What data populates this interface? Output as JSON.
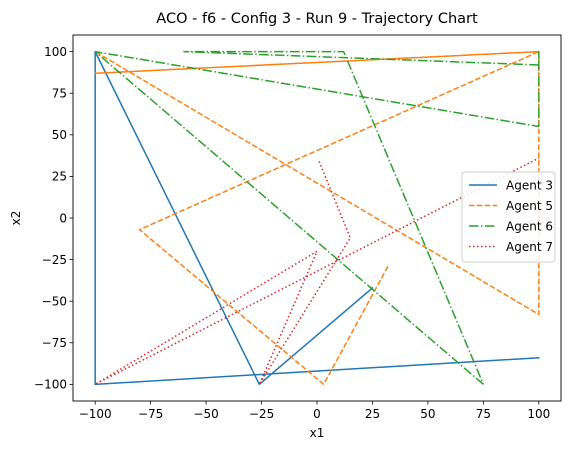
{
  "chart_data": {
    "type": "line",
    "title": "ACO - f6 - Config 3 - Run 9 - Trajectory Chart",
    "xlabel": "x1",
    "ylabel": "x2",
    "xlim": [
      -110,
      110
    ],
    "ylim": [
      -110,
      110
    ],
    "xticks": [
      -100,
      -75,
      -50,
      -25,
      0,
      25,
      50,
      75,
      100
    ],
    "yticks": [
      -100,
      -75,
      -50,
      -25,
      0,
      25,
      50,
      75,
      100
    ],
    "grid": false,
    "legend_position": "center-right",
    "series": [
      {
        "name": "Agent 3",
        "color": "#1f77b4",
        "dash": "solid",
        "points": [
          [
            25,
            -42
          ],
          [
            -26,
            -100
          ],
          [
            -100,
            100
          ],
          [
            -100,
            -100
          ],
          [
            100,
            -84
          ]
        ]
      },
      {
        "name": "Agent 5",
        "color": "#ff7f0e",
        "dash": "dashed",
        "points": [
          [
            32,
            -29
          ],
          [
            3,
            -100
          ],
          [
            -80,
            -7
          ],
          [
            100,
            100
          ],
          [
            -100,
            87
          ],
          [
            100,
            100
          ],
          [
            100,
            -58
          ],
          [
            -100,
            100
          ]
        ]
      },
      {
        "name": "Agent 6",
        "color": "#2ca02c",
        "dash": "dashdot",
        "points": [
          [
            75,
            -100
          ],
          [
            -100,
            100
          ],
          [
            100,
            55
          ],
          [
            100,
            100
          ],
          [
            100,
            92
          ],
          [
            -60,
            100
          ],
          [
            -30,
            100
          ],
          [
            12,
            100
          ],
          [
            75,
            -100
          ]
        ]
      },
      {
        "name": "Agent 7",
        "color": "#d62728",
        "dash": "dotted",
        "points": [
          [
            1,
            34
          ],
          [
            15,
            -12
          ],
          [
            -26,
            -100
          ],
          [
            0,
            -20
          ],
          [
            -100,
            -100
          ],
          [
            100,
            36
          ]
        ]
      }
    ]
  }
}
